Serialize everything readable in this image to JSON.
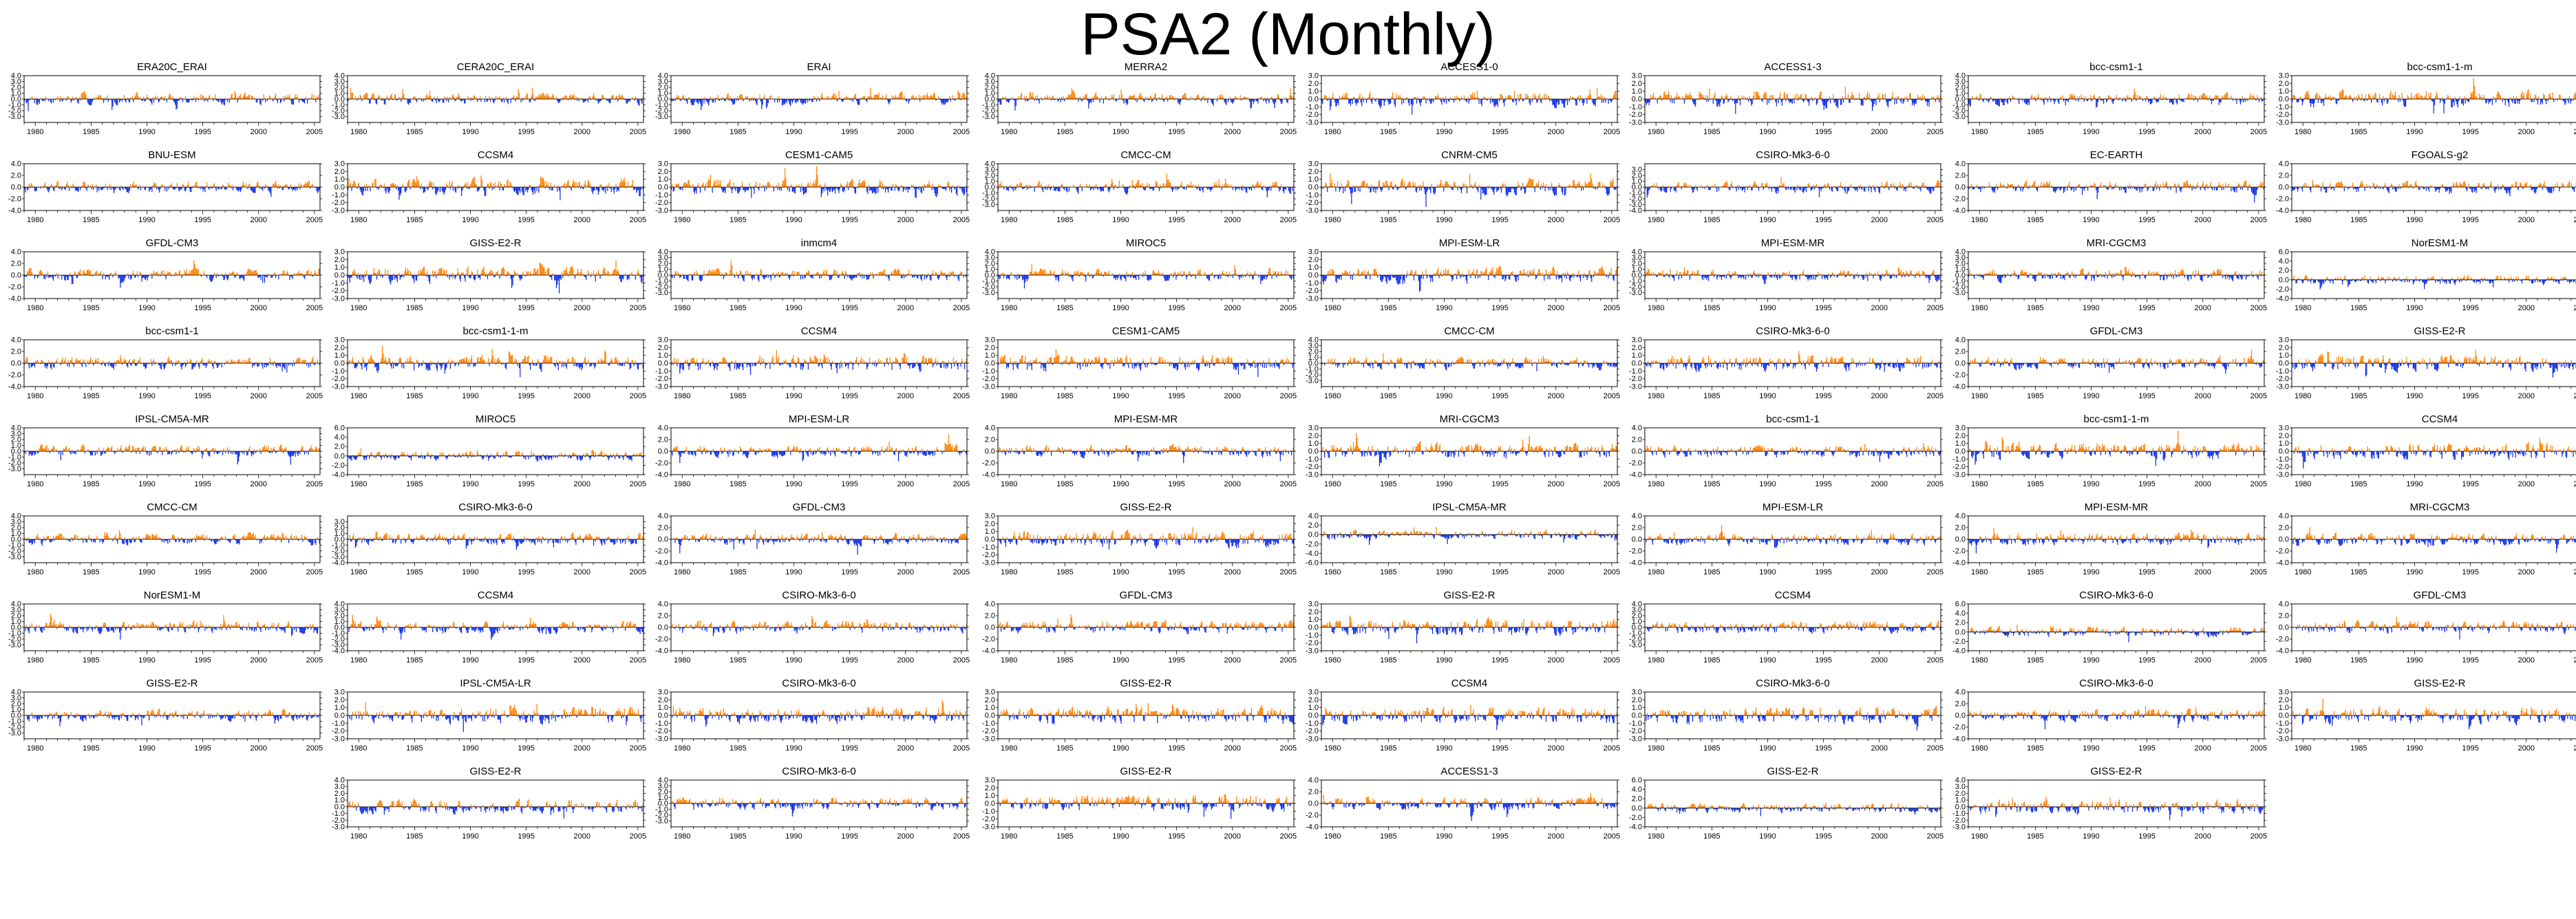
{
  "page": {
    "title": "PSA2 (Monthly)"
  },
  "colors": {
    "positive": "#ff8000",
    "negative": "#0a28e6",
    "axis": "#000000"
  },
  "chart_data": {
    "type": "bar",
    "description_level": "panel grid of monthly index time series, positive anomalies orange, negative anomalies blue",
    "x_start": 1979,
    "x_end": 2005.5,
    "x_ticks": [
      1980,
      1985,
      1990,
      1995,
      2000,
      2005
    ],
    "rows": [
      [
        {
          "name": "ERA20C_ERAI",
          "ylim": [
            -4,
            4
          ],
          "yticks": [
            4.0,
            3.0,
            2.0,
            1.0,
            0.0,
            -1.0,
            -2.0,
            -3.0
          ]
        },
        {
          "name": "CERA20C_ERAI",
          "ylim": [
            -4,
            4
          ],
          "yticks": [
            4.0,
            3.0,
            2.0,
            1.0,
            0.0,
            -1.0,
            -2.0,
            -3.0
          ]
        },
        {
          "name": "ERAI",
          "ylim": [
            -4,
            4
          ],
          "yticks": [
            4.0,
            3.0,
            2.0,
            1.0,
            0.0,
            -1.0,
            -2.0,
            -3.0
          ]
        },
        {
          "name": "MERRA2",
          "ylim": [
            -4,
            4
          ],
          "yticks": [
            4.0,
            3.0,
            2.0,
            1.0,
            0.0,
            -1.0,
            -2.0,
            -3.0
          ]
        },
        {
          "name": "ACCESS1-0",
          "ylim": [
            -3,
            3
          ],
          "yticks": [
            3.0,
            2.0,
            1.0,
            0.0,
            -1.0,
            -2.0,
            -3.0
          ]
        },
        {
          "name": "ACCESS1-3",
          "ylim": [
            -3,
            3
          ],
          "yticks": [
            3.0,
            2.0,
            1.0,
            0.0,
            -1.0,
            -2.0,
            -3.0
          ]
        },
        {
          "name": "bcc-csm1-1",
          "ylim": [
            -4,
            4
          ],
          "yticks": [
            4.0,
            3.0,
            2.0,
            1.0,
            0.0,
            -1.0,
            -2.0,
            -3.0
          ]
        },
        {
          "name": "bcc-csm1-1-m",
          "ylim": [
            -3,
            3
          ],
          "yticks": [
            3.0,
            2.0,
            1.0,
            0.0,
            -1.0,
            -2.0,
            -3.0
          ]
        }
      ],
      [
        {
          "name": "BNU-ESM",
          "ylim": [
            -4,
            4
          ],
          "yticks": [
            4.0,
            2.0,
            0.0,
            -2.0,
            -4.0
          ]
        },
        {
          "name": "CCSM4",
          "ylim": [
            -3,
            3
          ],
          "yticks": [
            3.0,
            2.0,
            1.0,
            0.0,
            -1.0,
            -2.0,
            -3.0
          ]
        },
        {
          "name": "CESM1-CAM5",
          "ylim": [
            -3,
            3
          ],
          "yticks": [
            3.0,
            2.0,
            1.0,
            0.0,
            -1.0,
            -2.0,
            -3.0
          ]
        },
        {
          "name": "CMCC-CM",
          "ylim": [
            -4,
            4
          ],
          "yticks": [
            4.0,
            3.0,
            2.0,
            1.0,
            0.0,
            -1.0,
            -2.0,
            -3.0
          ]
        },
        {
          "name": "CNRM-CM5",
          "ylim": [
            -3,
            3
          ],
          "yticks": [
            3.0,
            2.0,
            1.0,
            0.0,
            -1.0,
            -2.0,
            -3.0
          ]
        },
        {
          "name": "CSIRO-Mk3-6-0",
          "ylim": [
            -4,
            4
          ],
          "yticks": [
            3.0,
            2.0,
            1.0,
            0.0,
            -1.0,
            -2.0,
            -3.0,
            -4.0
          ]
        },
        {
          "name": "EC-EARTH",
          "ylim": [
            -4,
            4
          ],
          "yticks": [
            4.0,
            2.0,
            0.0,
            -2.0,
            -4.0
          ]
        },
        {
          "name": "FGOALS-g2",
          "ylim": [
            -4,
            4
          ],
          "yticks": [
            4.0,
            2.0,
            0.0,
            -2.0,
            -4.0
          ]
        }
      ],
      [
        {
          "name": "GFDL-CM3",
          "ylim": [
            -4,
            4
          ],
          "yticks": [
            4.0,
            2.0,
            0.0,
            -2.0,
            -4.0
          ]
        },
        {
          "name": "GISS-E2-R",
          "ylim": [
            -3,
            3
          ],
          "yticks": [
            3.0,
            2.0,
            1.0,
            0.0,
            -1.0,
            -2.0,
            -3.0
          ]
        },
        {
          "name": "inmcm4",
          "ylim": [
            -4,
            4
          ],
          "yticks": [
            4.0,
            3.0,
            2.0,
            1.0,
            0.0,
            -1.0,
            -2.0,
            -3.0
          ]
        },
        {
          "name": "MIROC5",
          "ylim": [
            -4,
            4
          ],
          "yticks": [
            4.0,
            3.0,
            2.0,
            1.0,
            0.0,
            -1.0,
            -2.0,
            -3.0
          ]
        },
        {
          "name": "MPI-ESM-LR",
          "ylim": [
            -3,
            3
          ],
          "yticks": [
            3.0,
            2.0,
            1.0,
            0.0,
            -1.0,
            -2.0,
            -3.0
          ]
        },
        {
          "name": "MPI-ESM-MR",
          "ylim": [
            -4,
            4
          ],
          "yticks": [
            4.0,
            3.0,
            2.0,
            1.0,
            0.0,
            -1.0,
            -2.0,
            -3.0
          ]
        },
        {
          "name": "MRI-CGCM3",
          "ylim": [
            -4,
            4
          ],
          "yticks": [
            4.0,
            3.0,
            2.0,
            1.0,
            0.0,
            -1.0,
            -2.0,
            -3.0
          ]
        },
        {
          "name": "NorESM1-M",
          "ylim": [
            -4,
            6
          ],
          "yticks": [
            6.0,
            4.0,
            2.0,
            0.0,
            -2.0,
            -4.0
          ]
        }
      ],
      [
        {
          "name": "bcc-csm1-1",
          "ylim": [
            -4,
            4
          ],
          "yticks": [
            4.0,
            2.0,
            0.0,
            -2.0,
            -4.0
          ]
        },
        {
          "name": "bcc-csm1-1-m",
          "ylim": [
            -3,
            3
          ],
          "yticks": [
            3.0,
            2.0,
            1.0,
            0.0,
            -1.0,
            -2.0,
            -3.0
          ]
        },
        {
          "name": "CCSM4",
          "ylim": [
            -3,
            3
          ],
          "yticks": [
            3.0,
            2.0,
            1.0,
            0.0,
            -1.0,
            -2.0,
            -3.0
          ]
        },
        {
          "name": "CESM1-CAM5",
          "ylim": [
            -3,
            3
          ],
          "yticks": [
            3.0,
            2.0,
            1.0,
            0.0,
            -1.0,
            -2.0,
            -3.0
          ]
        },
        {
          "name": "CMCC-CM",
          "ylim": [
            -4,
            4
          ],
          "yticks": [
            4.0,
            3.0,
            2.0,
            1.0,
            0.0,
            -1.0,
            -2.0,
            -3.0
          ]
        },
        {
          "name": "CSIRO-Mk3-6-0",
          "ylim": [
            -3,
            3
          ],
          "yticks": [
            3.0,
            2.0,
            1.0,
            0.0,
            -1.0,
            -2.0,
            -3.0
          ]
        },
        {
          "name": "GFDL-CM3",
          "ylim": [
            -4,
            4
          ],
          "yticks": [
            4.0,
            2.0,
            0.0,
            -2.0,
            -4.0
          ]
        },
        {
          "name": "GISS-E2-R",
          "ylim": [
            -3,
            3
          ],
          "yticks": [
            3.0,
            2.0,
            1.0,
            0.0,
            -1.0,
            -2.0,
            -3.0
          ]
        }
      ],
      [
        {
          "name": "IPSL-CM5A-MR",
          "ylim": [
            -4,
            4
          ],
          "yticks": [
            4.0,
            3.0,
            2.0,
            1.0,
            0.0,
            -1.0,
            -2.0,
            -3.0
          ]
        },
        {
          "name": "MIROC5",
          "ylim": [
            -4,
            6
          ],
          "yticks": [
            6.0,
            4.0,
            2.0,
            0.0,
            -2.0,
            -4.0
          ]
        },
        {
          "name": "MPI-ESM-LR",
          "ylim": [
            -4,
            4
          ],
          "yticks": [
            4.0,
            2.0,
            0.0,
            -2.0,
            -4.0
          ]
        },
        {
          "name": "MPI-ESM-MR",
          "ylim": [
            -4,
            4
          ],
          "yticks": [
            4.0,
            2.0,
            0.0,
            -2.0,
            -4.0
          ]
        },
        {
          "name": "MRI-CGCM3",
          "ylim": [
            -3,
            3
          ],
          "yticks": [
            3.0,
            2.0,
            1.0,
            0.0,
            -1.0,
            -2.0,
            -3.0
          ]
        },
        {
          "name": "bcc-csm1-1",
          "ylim": [
            -4,
            4
          ],
          "yticks": [
            4.0,
            2.0,
            0.0,
            -2.0,
            -4.0
          ]
        },
        {
          "name": "bcc-csm1-1-m",
          "ylim": [
            -3,
            3
          ],
          "yticks": [
            3.0,
            2.0,
            1.0,
            0.0,
            -1.0,
            -2.0,
            -3.0
          ]
        },
        {
          "name": "CCSM4",
          "ylim": [
            -3,
            3
          ],
          "yticks": [
            3.0,
            2.0,
            1.0,
            0.0,
            -1.0,
            -2.0,
            -3.0
          ]
        }
      ],
      [
        {
          "name": "CMCC-CM",
          "ylim": [
            -4,
            4
          ],
          "yticks": [
            4.0,
            3.0,
            2.0,
            1.0,
            0.0,
            -1.0,
            -2.0,
            -3.0
          ]
        },
        {
          "name": "CSIRO-Mk3-6-0",
          "ylim": [
            -4,
            4
          ],
          "yticks": [
            3.0,
            2.0,
            1.0,
            0.0,
            -1.0,
            -2.0,
            -3.0,
            -4.0
          ]
        },
        {
          "name": "GFDL-CM3",
          "ylim": [
            -4,
            4
          ],
          "yticks": [
            4.0,
            2.0,
            0.0,
            -2.0,
            -4.0
          ]
        },
        {
          "name": "GISS-E2-R",
          "ylim": [
            -3,
            3
          ],
          "yticks": [
            3.0,
            2.0,
            1.0,
            0.0,
            -1.0,
            -2.0,
            -3.0
          ]
        },
        {
          "name": "IPSL-CM5A-MR",
          "ylim": [
            -6,
            4
          ],
          "yticks": [
            4.0,
            2.0,
            0.0,
            -2.0,
            -4.0,
            -6.0
          ]
        },
        {
          "name": "MPI-ESM-LR",
          "ylim": [
            -4,
            4
          ],
          "yticks": [
            4.0,
            2.0,
            0.0,
            -2.0,
            -4.0
          ]
        },
        {
          "name": "MPI-ESM-MR",
          "ylim": [
            -4,
            4
          ],
          "yticks": [
            4.0,
            2.0,
            0.0,
            -2.0,
            -4.0
          ]
        },
        {
          "name": "MRI-CGCM3",
          "ylim": [
            -4,
            4
          ],
          "yticks": [
            4.0,
            2.0,
            0.0,
            -2.0,
            -4.0
          ]
        }
      ],
      [
        {
          "name": "NorESM1-M",
          "ylim": [
            -4,
            4
          ],
          "yticks": [
            4.0,
            3.0,
            2.0,
            1.0,
            0.0,
            -1.0,
            -2.0,
            -3.0
          ]
        },
        {
          "name": "CCSM4",
          "ylim": [
            -4,
            4
          ],
          "yticks": [
            4.0,
            3.0,
            2.0,
            1.0,
            0.0,
            -1.0,
            -2.0,
            -3.0,
            -4.0
          ]
        },
        {
          "name": "CSIRO-Mk3-6-0",
          "ylim": [
            -4,
            4
          ],
          "yticks": [
            4.0,
            2.0,
            0.0,
            -2.0,
            -4.0
          ]
        },
        {
          "name": "GFDL-CM3",
          "ylim": [
            -4,
            4
          ],
          "yticks": [
            4.0,
            2.0,
            0.0,
            -2.0,
            -4.0
          ]
        },
        {
          "name": "GISS-E2-R",
          "ylim": [
            -3,
            3
          ],
          "yticks": [
            3.0,
            2.0,
            1.0,
            0.0,
            -1.0,
            -2.0,
            -3.0
          ]
        },
        {
          "name": "CCSM4",
          "ylim": [
            -4,
            4
          ],
          "yticks": [
            4.0,
            3.0,
            2.0,
            1.0,
            0.0,
            -1.0,
            -2.0,
            -3.0
          ]
        },
        {
          "name": "CSIRO-Mk3-6-0",
          "ylim": [
            -4,
            6
          ],
          "yticks": [
            6.0,
            4.0,
            2.0,
            0.0,
            -2.0,
            -4.0
          ]
        },
        {
          "name": "GFDL-CM3",
          "ylim": [
            -4,
            4
          ],
          "yticks": [
            4.0,
            2.0,
            0.0,
            -2.0,
            -4.0
          ]
        }
      ],
      [
        {
          "name": "GISS-E2-R",
          "ylim": [
            -4,
            4
          ],
          "yticks": [
            4.0,
            3.0,
            2.0,
            1.0,
            0.0,
            -1.0,
            -2.0,
            -3.0
          ]
        },
        {
          "name": "IPSL-CM5A-LR",
          "ylim": [
            -3,
            3
          ],
          "yticks": [
            3.0,
            2.0,
            1.0,
            0.0,
            -1.0,
            -2.0,
            -3.0
          ]
        },
        {
          "name": "CSIRO-Mk3-6-0",
          "ylim": [
            -3,
            3
          ],
          "yticks": [
            3.0,
            2.0,
            1.0,
            0.0,
            -1.0,
            -2.0,
            -3.0
          ]
        },
        {
          "name": "GISS-E2-R",
          "ylim": [
            -3,
            3
          ],
          "yticks": [
            3.0,
            2.0,
            1.0,
            0.0,
            -1.0,
            -2.0,
            -3.0
          ]
        },
        {
          "name": "CCSM4",
          "ylim": [
            -3,
            3
          ],
          "yticks": [
            3.0,
            2.0,
            1.0,
            0.0,
            -1.0,
            -2.0,
            -3.0
          ]
        },
        {
          "name": "CSIRO-Mk3-6-0",
          "ylim": [
            -3,
            3
          ],
          "yticks": [
            3.0,
            2.0,
            1.0,
            0.0,
            -1.0,
            -2.0,
            -3.0
          ]
        },
        {
          "name": "CSIRO-Mk3-6-0",
          "ylim": [
            -4,
            4
          ],
          "yticks": [
            4.0,
            2.0,
            0.0,
            -2.0,
            -4.0
          ]
        },
        {
          "name": "GISS-E2-R",
          "ylim": [
            -3,
            3
          ],
          "yticks": [
            3.0,
            2.0,
            1.0,
            0.0,
            -1.0,
            -2.0,
            -3.0
          ]
        }
      ],
      [
        null,
        {
          "name": "GISS-E2-R",
          "ylim": [
            -3,
            4
          ],
          "yticks": [
            4.0,
            3.0,
            2.0,
            1.0,
            0.0,
            -1.0,
            -2.0,
            -3.0
          ]
        },
        {
          "name": "CSIRO-Mk3-6-0",
          "ylim": [
            -4,
            4
          ],
          "yticks": [
            4.0,
            3.0,
            2.0,
            1.0,
            0.0,
            -1.0,
            -2.0,
            -3.0
          ]
        },
        {
          "name": "GISS-E2-R",
          "ylim": [
            -3,
            3
          ],
          "yticks": [
            3.0,
            2.0,
            1.0,
            0.0,
            -1.0,
            -2.0,
            -3.0
          ]
        },
        {
          "name": "ACCESS1-3",
          "ylim": [
            -4,
            4
          ],
          "yticks": [
            4.0,
            2.0,
            0.0,
            -2.0,
            -4.0
          ]
        },
        {
          "name": "GISS-E2-R",
          "ylim": [
            -4,
            6
          ],
          "yticks": [
            6.0,
            4.0,
            2.0,
            0.0,
            -2.0,
            -4.0
          ]
        },
        {
          "name": "GISS-E2-R",
          "ylim": [
            -3,
            4
          ],
          "yticks": [
            4.0,
            3.0,
            2.0,
            1.0,
            0.0,
            -1.0,
            -2.0,
            -3.0
          ]
        },
        null
      ]
    ]
  }
}
